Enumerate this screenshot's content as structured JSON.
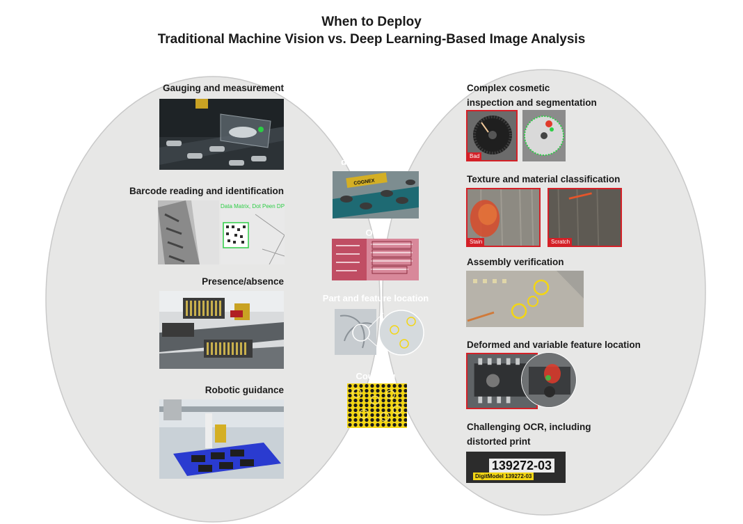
{
  "title": {
    "line1": "When to Deploy",
    "line2": "Traditional Machine Vision vs. Deep Learning-Based Image Analysis"
  },
  "colors": {
    "circle_fill": "#e7e7e6",
    "circle_stroke": "#c9c9c9",
    "overlap_fill": "#231f20",
    "accent_red": "#d42027",
    "accent_yellow": "#f3d614"
  },
  "left": {
    "items": [
      {
        "label": "Gauging and measurement"
      },
      {
        "label": "Barcode reading and identification",
        "overlay": "Data Matrix, Dot Peen DPM"
      },
      {
        "label": "Presence/absence"
      },
      {
        "label": "Robotic guidance"
      }
    ]
  },
  "center": {
    "items": [
      {
        "label": "Inspection and defect detection",
        "line1": "Inspection and",
        "line2": "defect detection",
        "brand": "COGNEX"
      },
      {
        "label": "OCR"
      },
      {
        "label": "Part and feature location"
      },
      {
        "label": "Counting"
      }
    ]
  },
  "right": {
    "items": [
      {
        "label": "Complex cosmetic inspection and segmentation",
        "line1": "Complex cosmetic",
        "line2": "inspection and segmentation",
        "tag": "Bad"
      },
      {
        "label": "Texture and material classification",
        "tags": [
          "Stain",
          "Scratch"
        ]
      },
      {
        "label": "Assembly verification"
      },
      {
        "label": "Deformed and variable feature location"
      },
      {
        "label": "Challenging OCR, including distorted print",
        "line1": "Challenging OCR, including",
        "line2": "distorted print",
        "print_text": "139272-03",
        "sticker": "DigitModel 139272-03"
      }
    ]
  }
}
